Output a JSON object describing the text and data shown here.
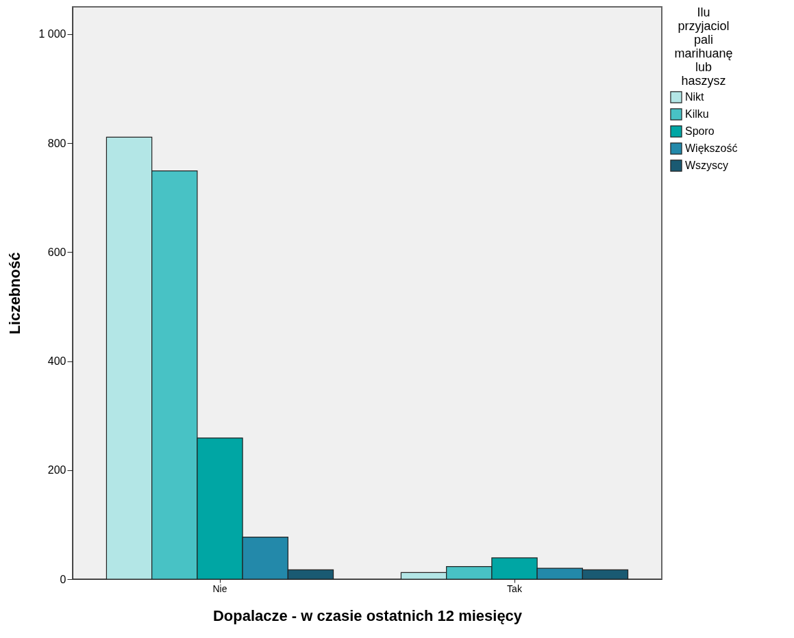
{
  "chart_data": {
    "type": "bar",
    "xlabel": "Dopalacze - w czasie ostatnich 12 miesięcy",
    "ylabel": "Liczebność",
    "legend_title": "Ilu przyjaciol pali marihuanę lub haszysz",
    "legend": "top right",
    "grid": false,
    "categories": [
      "Nie",
      "Tak"
    ],
    "ylim": [
      0,
      1050
    ],
    "yticks": [
      0,
      200,
      400,
      600,
      800,
      {
        "value": 1000,
        "label": "1 000"
      }
    ],
    "series": [
      {
        "name": "Nikt",
        "color": "#b3e6e6",
        "values": [
          811,
          12
        ]
      },
      {
        "name": "Kilku",
        "color": "#48c2c5",
        "values": [
          749,
          23
        ]
      },
      {
        "name": "Sporo",
        "color": "#00a6a4",
        "values": [
          259,
          39
        ]
      },
      {
        "name": "Większość",
        "color": "#2389aa",
        "values": [
          77,
          20
        ]
      },
      {
        "name": "Wszyscy",
        "color": "#1a5a72",
        "values": [
          17,
          17
        ]
      }
    ]
  }
}
